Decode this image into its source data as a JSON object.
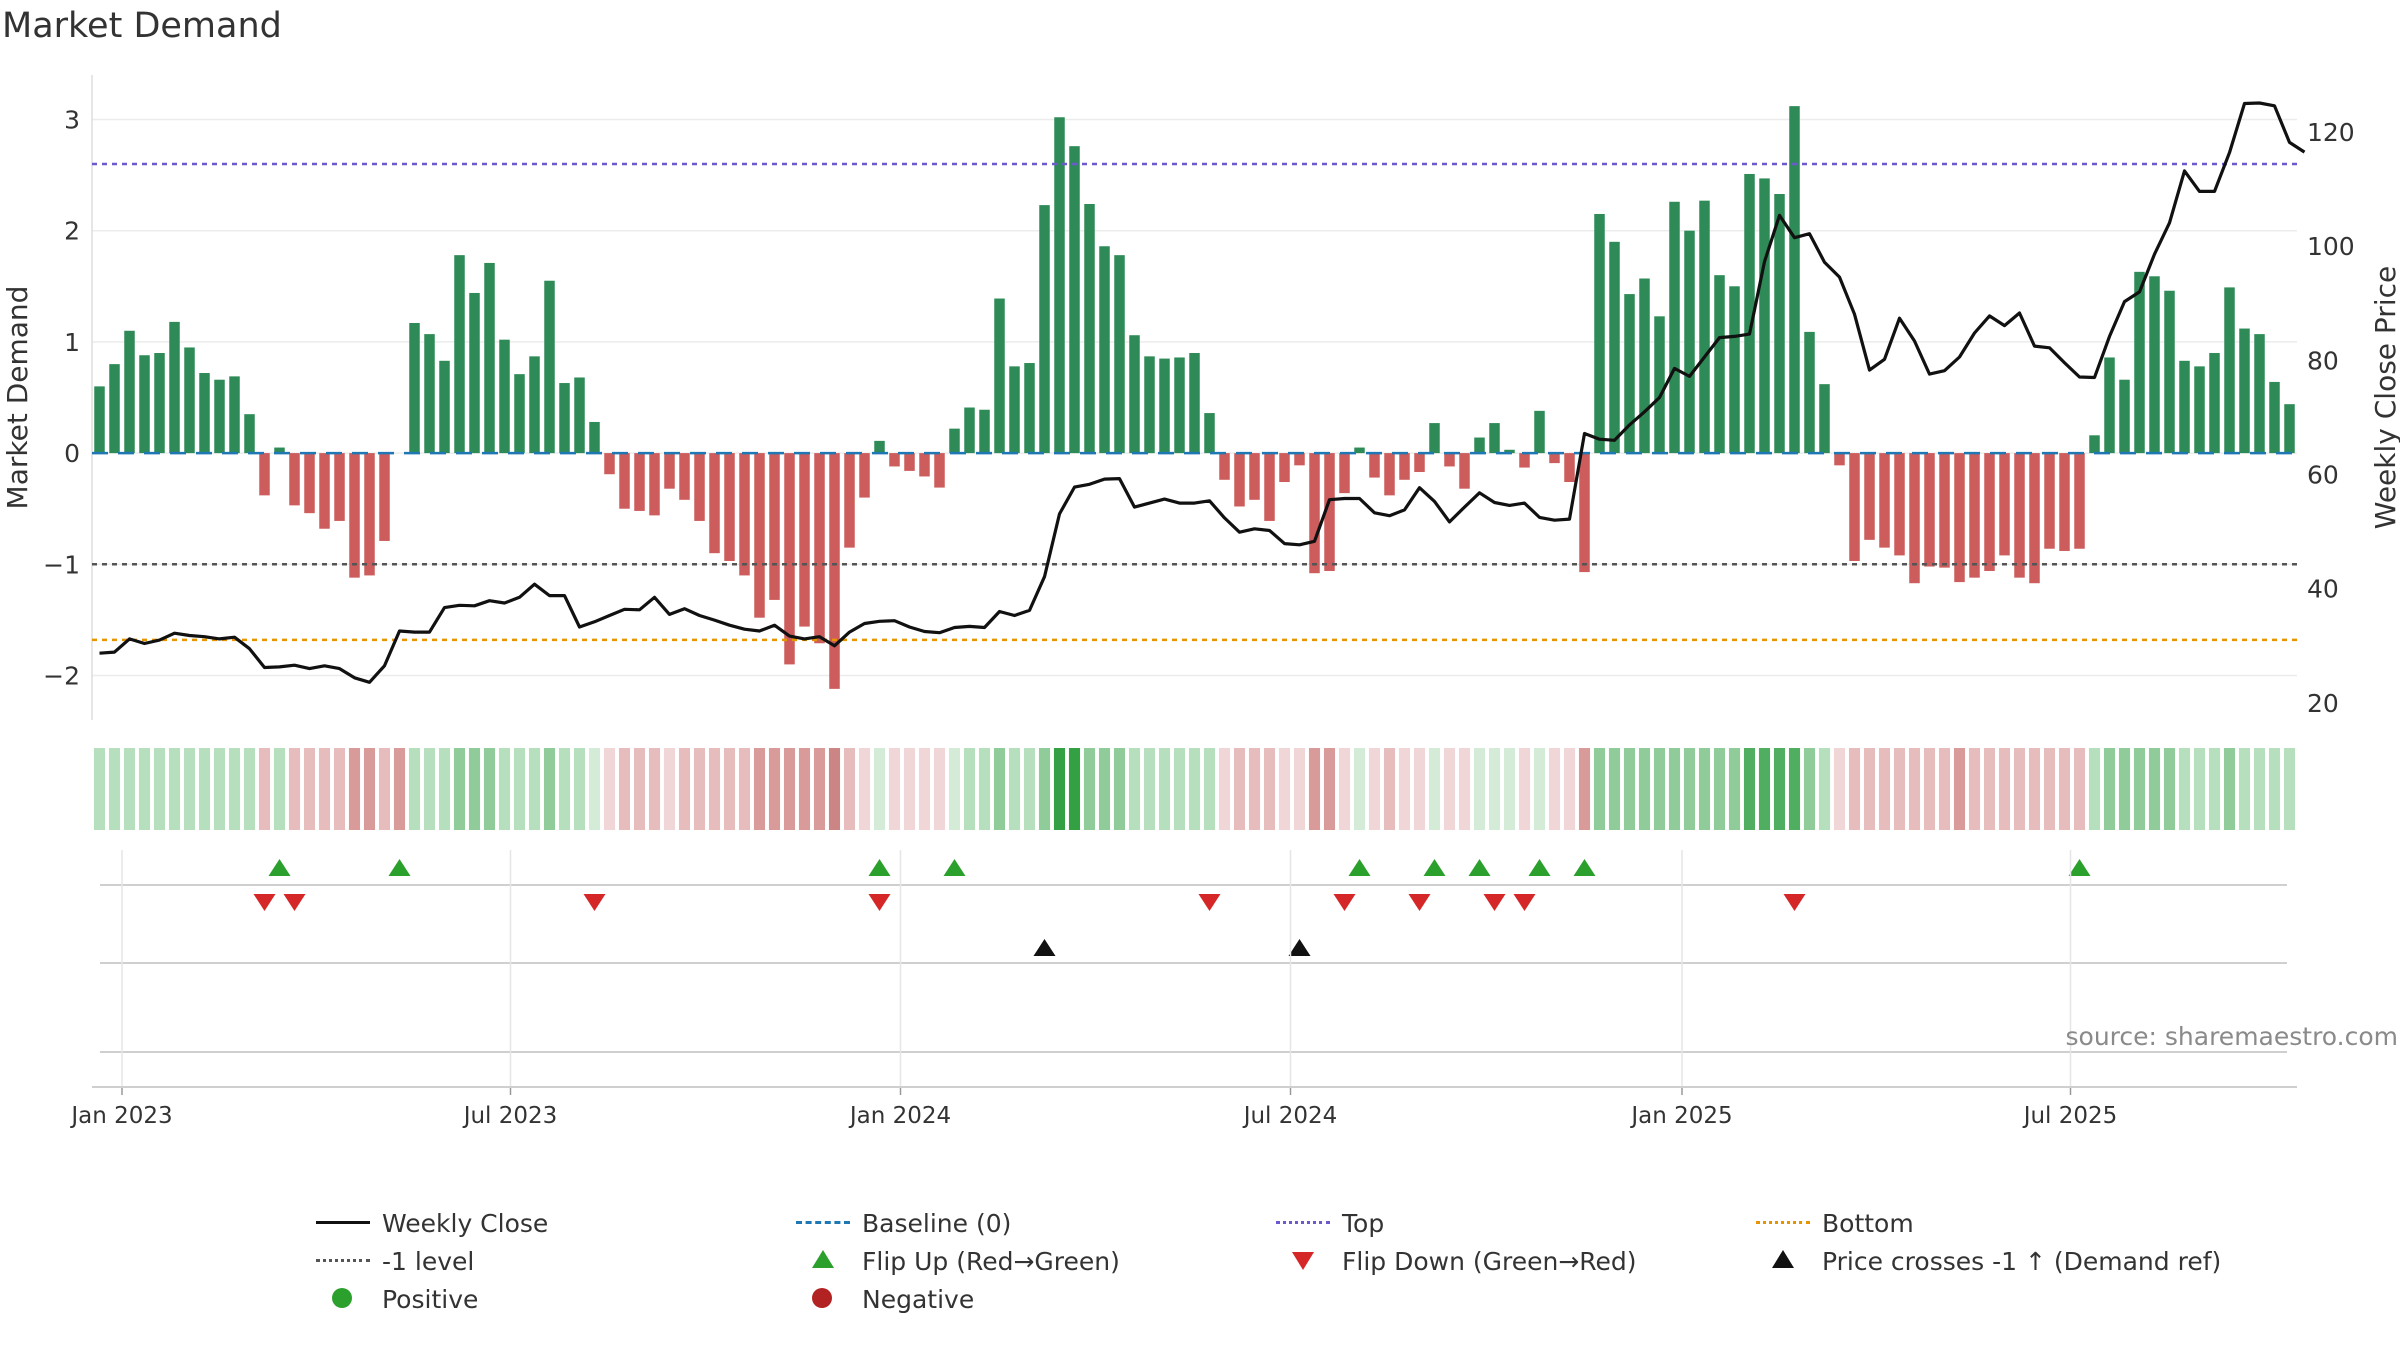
{
  "title": "Market Demand",
  "source": "source: sharemaestro.com",
  "colors": {
    "positive_bar": "#2e8b57",
    "negative_bar": "#cd5c5c",
    "close_line": "#111111",
    "baseline": "#1f77b4",
    "top": "#6a5acd",
    "bottom": "#e69500",
    "minus_one": "#555555",
    "flip_up": "#2ca02c",
    "flip_down": "#d62728",
    "cross": "#111111",
    "positive_dot": "#2ca02c",
    "negative_dot": "#b22222"
  },
  "chart_data": {
    "type": "bar+line",
    "title": "Market Demand",
    "ylabel": "Market Demand",
    "y2label": "Weekly Close Price",
    "ylim": [
      -2.4,
      3.4
    ],
    "y2lim": [
      17,
      130
    ],
    "yticks": [
      -2,
      -1,
      0,
      1,
      2,
      3
    ],
    "y2ticks": [
      20,
      40,
      60,
      80,
      100,
      120
    ],
    "x_ticks": [
      {
        "label": "Jan 2023",
        "week": 1.5
      },
      {
        "label": "Jul 2023",
        "week": 27.4
      },
      {
        "label": "Jan 2024",
        "week": 53.4
      },
      {
        "label": "Jul 2024",
        "week": 79.4
      },
      {
        "label": "Jan 2025",
        "week": 105.5
      },
      {
        "label": "Jul 2025",
        "week": 131.4
      }
    ],
    "levels": {
      "top": 2.6,
      "bottom": -1.68,
      "minus_one": -1.0,
      "baseline": 0
    },
    "demand": [
      0.6,
      0.8,
      1.1,
      0.88,
      0.9,
      1.18,
      0.95,
      0.72,
      0.66,
      0.69,
      0.35,
      -0.38,
      0.05,
      -0.47,
      -0.54,
      -0.68,
      -0.61,
      -1.12,
      -1.1,
      -0.79,
      0,
      1.17,
      1.07,
      0.83,
      1.78,
      1.44,
      1.71,
      1.02,
      0.71,
      0.87,
      1.55,
      0.63,
      0.68,
      0.28,
      -0.19,
      -0.5,
      -0.52,
      -0.56,
      -0.32,
      -0.42,
      -0.61,
      -0.9,
      -0.97,
      -1.1,
      -1.48,
      -1.32,
      -1.9,
      -1.56,
      -1.71,
      -2.12,
      -0.85,
      -0.4,
      0.11,
      -0.12,
      -0.16,
      -0.21,
      -0.31,
      0.22,
      0.41,
      0.39,
      1.39,
      0.78,
      0.81,
      2.23,
      3.02,
      2.76,
      2.24,
      1.86,
      1.78,
      1.06,
      0.87,
      0.85,
      0.86,
      0.9,
      0.36,
      -0.24,
      -0.48,
      -0.42,
      -0.61,
      -0.26,
      -0.11,
      -1.08,
      -1.06,
      -0.36,
      0.05,
      -0.22,
      -0.38,
      -0.24,
      -0.17,
      0.27,
      -0.12,
      -0.32,
      0.14,
      0.27,
      0.03,
      -0.13,
      0.38,
      -0.09,
      -0.26,
      -1.07,
      2.15,
      1.9,
      1.43,
      1.57,
      1.23,
      2.26,
      2.0,
      2.27,
      1.6,
      1.5,
      2.51,
      2.47,
      2.33,
      3.12,
      1.09,
      0.62,
      -0.11,
      -0.97,
      -0.78,
      -0.85,
      -0.92,
      -1.17,
      -1.02,
      -1.03,
      -1.16,
      -1.12,
      -1.06,
      -0.92,
      -1.12,
      -1.17,
      -0.86,
      -0.88,
      -0.86,
      0.16,
      0.86,
      0.66,
      1.63,
      1.59,
      1.46,
      0.83,
      0.78,
      0.9,
      1.49,
      1.12,
      1.07,
      0.64,
      0.44
    ],
    "close": [
      28.7,
      28.9,
      31.2,
      30.4,
      31.0,
      32.2,
      31.8,
      31.6,
      31.2,
      31.5,
      29.5,
      26.2,
      26.3,
      26.6,
      26.0,
      26.5,
      26.0,
      24.4,
      23.6,
      26.5,
      32.6,
      32.4,
      32.4,
      36.7,
      37.1,
      37.0,
      37.9,
      37.5,
      38.5,
      40.8,
      38.8,
      38.8,
      33.3,
      34.2,
      35.3,
      36.4,
      36.3,
      38.5,
      35.5,
      36.5,
      35.3,
      34.5,
      33.6,
      32.9,
      32.6,
      33.6,
      31.7,
      31.2,
      31.6,
      30.0,
      32.4,
      33.9,
      34.3,
      34.4,
      33.3,
      32.5,
      32.3,
      33.2,
      33.4,
      33.2,
      36.0,
      35.3,
      36.2,
      42.1,
      53.1,
      57.8,
      58.3,
      59.2,
      59.3,
      54.3,
      55.0,
      55.7,
      55.0,
      55.0,
      55.4,
      52.4,
      49.9,
      50.5,
      50.2,
      47.9,
      47.7,
      48.3,
      55.6,
      55.8,
      55.8,
      53.3,
      52.8,
      53.8,
      57.7,
      55.3,
      51.7,
      54.3,
      56.8,
      55.1,
      54.6,
      55.0,
      52.5,
      52.0,
      52.2,
      67.2,
      66.2,
      66.0,
      68.7,
      71.0,
      73.5,
      78.6,
      77.2,
      80.6,
      84.0,
      84.2,
      84.6,
      97.3,
      105.4,
      101.5,
      102.2,
      97.2,
      94.6,
      88.1,
      78.3,
      80.2,
      87.4,
      83.4,
      77.6,
      78.2,
      80.6,
      84.8,
      87.8,
      86.1,
      88.3,
      82.5,
      82.2,
      79.6,
      77.1,
      77.0,
      84.2,
      90.3,
      92.0,
      98.6,
      104.1,
      113.2,
      109.6,
      109.6,
      116.4,
      125.0,
      125.1,
      124.6,
      118.2,
      116.5
    ],
    "heat_strip": [
      2,
      2,
      2,
      2,
      2,
      2,
      2,
      2,
      2,
      2,
      2,
      5,
      2,
      5,
      5,
      5,
      5,
      6,
      6,
      5,
      6,
      2,
      2,
      2,
      3,
      3,
      3,
      2,
      2,
      2,
      3,
      2,
      2,
      1,
      4,
      5,
      5,
      5,
      4,
      5,
      5,
      5,
      5,
      5,
      6,
      6,
      6,
      6,
      6,
      7,
      5,
      4,
      1,
      4,
      4,
      4,
      4,
      1,
      2,
      2,
      3,
      2,
      2,
      3,
      9,
      9,
      3,
      3,
      3,
      2,
      2,
      2,
      2,
      2,
      2,
      4,
      5,
      5,
      5,
      4,
      4,
      6,
      6,
      4,
      1,
      4,
      5,
      4,
      4,
      1,
      4,
      4,
      1,
      1,
      1,
      4,
      1,
      4,
      4,
      6,
      3,
      3,
      3,
      3,
      3,
      3,
      3,
      3,
      3,
      3,
      8,
      8,
      8,
      8,
      3,
      2,
      4,
      5,
      5,
      5,
      5,
      5,
      5,
      5,
      6,
      5,
      5,
      5,
      5,
      5,
      5,
      5,
      5,
      2,
      3,
      3,
      3,
      3,
      3,
      2,
      2,
      2,
      3,
      2,
      2,
      2,
      2
    ],
    "flip_up_weeks": [
      12,
      20,
      52,
      57,
      84,
      89,
      92,
      96,
      99,
      132
    ],
    "flip_down_weeks": [
      11,
      13,
      33,
      52,
      74,
      83,
      88,
      93,
      95,
      113
    ],
    "cross_weeks": [
      63,
      80
    ],
    "positive_weeks": [],
    "negative_weeks": []
  },
  "legend": [
    {
      "label": "Weekly Close",
      "symbol": "solid"
    },
    {
      "label": "Baseline (0)",
      "symbol": "dash"
    },
    {
      "label": "Top",
      "symbol": "dot-blue"
    },
    {
      "label": "Bottom",
      "symbol": "dot-orange"
    },
    {
      "label": "-1 level",
      "symbol": "dot-grey"
    },
    {
      "label": "Flip Up (Red→Green)",
      "symbol": "tri-up"
    },
    {
      "label": "Flip Down (Green→Red)",
      "symbol": "tri-down"
    },
    {
      "label": "Price crosses -1 ↑ (Demand ref)",
      "symbol": "tri-black"
    },
    {
      "label": "Positive",
      "symbol": "dot-green"
    },
    {
      "label": "Negative",
      "symbol": "dot-red"
    }
  ]
}
